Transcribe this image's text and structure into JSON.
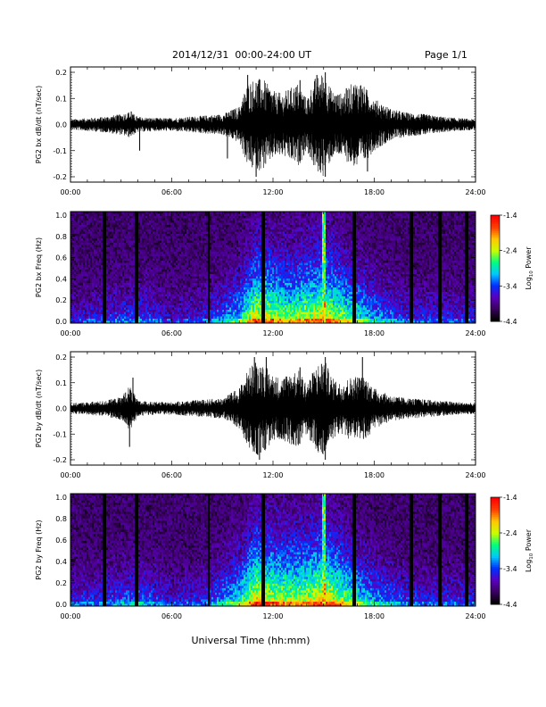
{
  "header": {
    "title": "2014/12/31  00:00-24:00 UT",
    "page": "Page 1/1"
  },
  "x_axis": {
    "label": "Universal Time (hh:mm)",
    "tick_labels": [
      "00:00",
      "06:00",
      "12:00",
      "18:00",
      "24:00"
    ],
    "range_hours": [
      0,
      24
    ]
  },
  "colorbar": {
    "tick_labels": [
      "-1.4",
      "-2.4",
      "-3.4",
      "-4.4"
    ],
    "range": [
      -4.4,
      -1.4
    ],
    "colormap": [
      "#000000",
      "#3a0060",
      "#5a00c0",
      "#0030ff",
      "#00c8ff",
      "#00ff80",
      "#c8ff00",
      "#ffc800",
      "#ff4000",
      "#ff0000"
    ]
  },
  "chart_data": [
    {
      "type": "line",
      "ylabel": "PG2 bx dB/dt (nT/sec)",
      "ylim": [
        -0.2,
        0.2
      ],
      "ytick_labels": [
        "0.2",
        "0.1",
        "0.0",
        "-0.1",
        "-0.2"
      ],
      "x_hours": [
        0,
        1,
        2,
        3,
        3.5,
        4,
        5,
        6,
        7,
        8,
        9,
        10,
        10.5,
        11,
        11.5,
        12,
        12.5,
        13,
        13.5,
        14,
        14.5,
        15,
        15.5,
        16,
        16.5,
        17,
        17.5,
        18,
        19,
        20,
        21,
        22,
        23,
        24
      ],
      "envelope": [
        0.02,
        0.025,
        0.03,
        0.04,
        0.05,
        0.03,
        0.025,
        0.025,
        0.03,
        0.035,
        0.04,
        0.07,
        0.16,
        0.18,
        0.17,
        0.13,
        0.12,
        0.14,
        0.16,
        0.1,
        0.18,
        0.2,
        0.13,
        0.12,
        0.15,
        0.17,
        0.14,
        0.1,
        0.06,
        0.045,
        0.04,
        0.03,
        0.025,
        0.02
      ],
      "spikes": [
        {
          "x": 3.6,
          "y": 0.05
        },
        {
          "x": 4.1,
          "y": -0.1
        },
        {
          "x": 9.3,
          "y": -0.13
        },
        {
          "x": 10.5,
          "y": 0.19
        },
        {
          "x": 11.0,
          "y": -0.2
        },
        {
          "x": 13.6,
          "y": 0.17
        },
        {
          "x": 14.6,
          "y": 0.19
        },
        {
          "x": 15.1,
          "y": 0.2
        },
        {
          "x": 15.1,
          "y": -0.2
        },
        {
          "x": 17.6,
          "y": -0.18
        },
        {
          "x": 17.2,
          "y": 0.15
        }
      ]
    },
    {
      "type": "heatmap",
      "ylabel": "PG2 bx Freq (Hz)",
      "ylim": [
        0,
        1.0
      ],
      "ytick_labels": [
        "1.0",
        "0.8",
        "0.6",
        "0.4",
        "0.2",
        "0.0"
      ],
      "zlabel": "Log10 Power",
      "zlim": [
        -4.4,
        -1.4
      ],
      "activity_hours": [
        0,
        2,
        4,
        6,
        8,
        10,
        11,
        12,
        13,
        14,
        15,
        16,
        17,
        18,
        20,
        22,
        24
      ],
      "activity_level": [
        0.25,
        0.3,
        0.35,
        0.25,
        0.3,
        0.5,
        0.75,
        0.7,
        0.65,
        0.7,
        0.75,
        0.65,
        0.55,
        0.45,
        0.3,
        0.3,
        0.3
      ],
      "dark_gaps_hours": [
        2.0,
        3.9,
        8.2,
        11.4,
        16.8,
        20.2,
        21.9,
        23.5
      ],
      "bright_lines_hours": [
        15.0
      ]
    },
    {
      "type": "line",
      "ylabel": "PG2 by dB/dt (nT/sec)",
      "ylim": [
        -0.2,
        0.2
      ],
      "ytick_labels": [
        "0.2",
        "0.1",
        "0.0",
        "-0.1",
        "-0.2"
      ],
      "x_hours": [
        0,
        1,
        2,
        3,
        3.5,
        4,
        5,
        6,
        7,
        8,
        9,
        10,
        10.5,
        11,
        11.5,
        12,
        12.5,
        13,
        13.5,
        14,
        14.5,
        15,
        15.5,
        16,
        16.5,
        17,
        17.5,
        18,
        19,
        20,
        21,
        22,
        23,
        24
      ],
      "envelope": [
        0.02,
        0.025,
        0.03,
        0.045,
        0.09,
        0.03,
        0.025,
        0.025,
        0.03,
        0.035,
        0.04,
        0.08,
        0.15,
        0.19,
        0.17,
        0.13,
        0.12,
        0.14,
        0.15,
        0.1,
        0.16,
        0.2,
        0.12,
        0.1,
        0.12,
        0.13,
        0.12,
        0.08,
        0.05,
        0.04,
        0.035,
        0.03,
        0.025,
        0.02
      ],
      "spikes": [
        {
          "x": 3.7,
          "y": 0.12
        },
        {
          "x": 3.5,
          "y": -0.15
        },
        {
          "x": 10.9,
          "y": 0.2
        },
        {
          "x": 11.2,
          "y": -0.2
        },
        {
          "x": 11.6,
          "y": 0.2
        },
        {
          "x": 15.1,
          "y": 0.2
        },
        {
          "x": 15.1,
          "y": -0.2
        },
        {
          "x": 17.3,
          "y": 0.2
        },
        {
          "x": 13.6,
          "y": 0.16
        }
      ]
    },
    {
      "type": "heatmap",
      "ylabel": "PG2 by Freq (Hz)",
      "ylim": [
        0,
        1.0
      ],
      "ytick_labels": [
        "1.0",
        "0.8",
        "0.6",
        "0.4",
        "0.2",
        "0.0"
      ],
      "zlabel": "Log10 Power",
      "zlim": [
        -4.4,
        -1.4
      ],
      "activity_hours": [
        0,
        2,
        4,
        6,
        8,
        10,
        11,
        12,
        13,
        14,
        15,
        16,
        17,
        18,
        20,
        22,
        24
      ],
      "activity_level": [
        0.3,
        0.32,
        0.4,
        0.28,
        0.32,
        0.55,
        0.78,
        0.72,
        0.7,
        0.72,
        0.78,
        0.68,
        0.55,
        0.45,
        0.32,
        0.3,
        0.3
      ],
      "dark_gaps_hours": [
        2.0,
        3.9,
        8.2,
        11.4,
        16.8,
        20.2,
        21.9,
        23.5
      ],
      "bright_lines_hours": [
        15.0
      ]
    }
  ]
}
